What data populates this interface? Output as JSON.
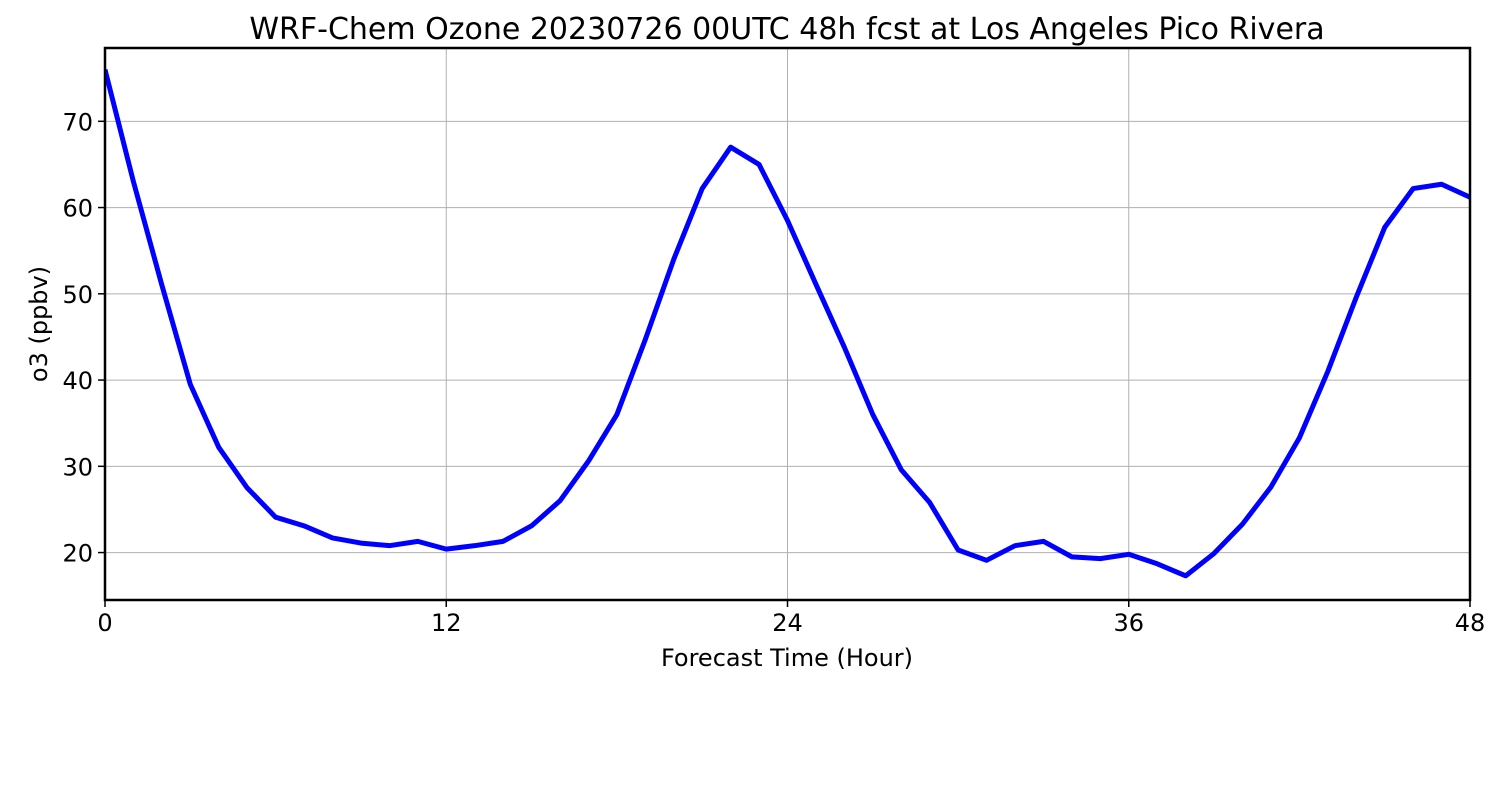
{
  "chart_data": {
    "type": "line",
    "title": "WRF-Chem Ozone  20230726 00UTC 48h fcst at Los Angeles Pico Rivera",
    "xlabel": "Forecast Time (Hour)",
    "ylabel": "o3  (ppbv)",
    "xlim": [
      0,
      48
    ],
    "ylim": [
      14.5,
      78.5
    ],
    "xticks": [
      0,
      12,
      24,
      36,
      48
    ],
    "yticks": [
      20,
      30,
      40,
      50,
      60,
      70
    ],
    "xtick_labels": [
      "0",
      "12",
      "24",
      "36",
      "48"
    ],
    "ytick_labels": [
      "20",
      "30",
      "40",
      "50",
      "60",
      "70"
    ],
    "grid": true,
    "line_color": "#0000ff",
    "grid_color": "#b0b0b0",
    "series": [
      {
        "x": [
          0,
          1,
          2,
          3,
          4,
          5,
          6,
          7,
          8,
          9,
          10,
          11,
          12,
          13,
          14,
          15,
          16,
          17,
          18,
          19,
          20,
          21,
          22,
          23,
          24,
          25,
          26,
          27,
          28,
          29,
          30,
          31,
          32,
          33,
          34,
          35,
          36,
          37,
          38,
          39,
          40,
          41,
          42,
          43,
          44,
          45,
          46,
          47,
          48
        ],
        "values": [
          76.0,
          63.0,
          51.0,
          39.5,
          32.2,
          27.5,
          24.1,
          23.1,
          21.7,
          21.1,
          20.8,
          21.3,
          20.4,
          20.8,
          21.3,
          23.1,
          26.0,
          30.6,
          36.0,
          44.7,
          54.0,
          62.2,
          67.0,
          65.0,
          58.5,
          51.1,
          43.8,
          36.0,
          29.6,
          25.8,
          20.3,
          19.1,
          20.8,
          21.3,
          19.5,
          19.3,
          19.8,
          18.7,
          17.3,
          19.9,
          23.3,
          27.6,
          33.3,
          41.0,
          49.6,
          57.7,
          62.2,
          62.7,
          61.2
        ]
      }
    ]
  }
}
